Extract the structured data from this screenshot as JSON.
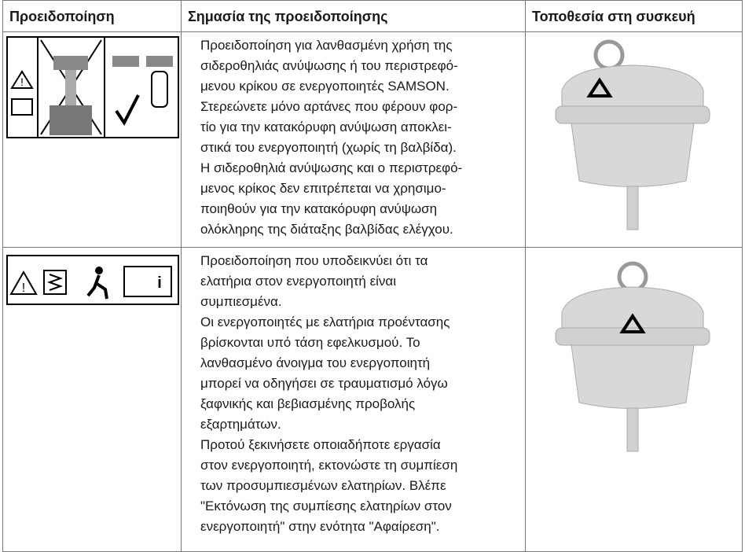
{
  "table": {
    "header": [
      "Προειδοποίηση",
      "Σημασία της προειδοποίησης",
      "Τοποθεσία στη συσκευή"
    ],
    "rows": [
      {
        "meaning": [
          "Προειδοποίηση για λανθασμένη χρήση της",
          "σιδεροθηλιάς ανύψωσης ή του περιστρεφό-",
          "μενου κρίκου σε ενεργοποιητές SAMSON.",
          "Στερεώνετε μόνο αρτάνες που φέρουν φορ-",
          "τίο για την κατακόρυφη ανύψωση αποκλει-",
          "στικά του ενεργοποιητή (χωρίς τη βαλβίδα).",
          "Η σιδεροθηλιά ανύψωσης και ο περιστρεφό-",
          "μενος κρίκος δεν επιτρέπεται να χρησιμο-",
          "ποιηθούν για την κατακόρυφη ανύψωση",
          "ολόκληρης της διάταξης βαλβίδας ελέγχου."
        ]
      },
      {
        "meaning": [
          "Προειδοποίηση που υποδεικνύει ότι τα",
          "ελατήρια στον ενεργοποιητή είναι",
          "συμπιεσμένα.",
          "Οι ενεργοποιητές με ελατήρια προέντασης",
          "βρίσκονται υπό τάση εφελκυσμού. Το",
          "λανθασμένο άνοιγμα του ενεργοποιητή",
          "μπορεί να οδηγήσει σε τραυματισμό λόγω",
          "ξαφνικής και βεβιασμένης προβολής",
          "εξαρτημάτων.",
          "Προτού ξεκινήσετε οποιαδήποτε εργασία",
          "στον ενεργοποιητή, εκτονώστε τη συμπίεση",
          "των προσυμπιεσμένων ελατηρίων. Βλέπε",
          "\"Εκτόνωση της συμπίεσης ελατηρίων στον",
          "ενεργοποιητή\" στην ενότητα \"Αφαίρεση\"."
        ]
      }
    ]
  }
}
